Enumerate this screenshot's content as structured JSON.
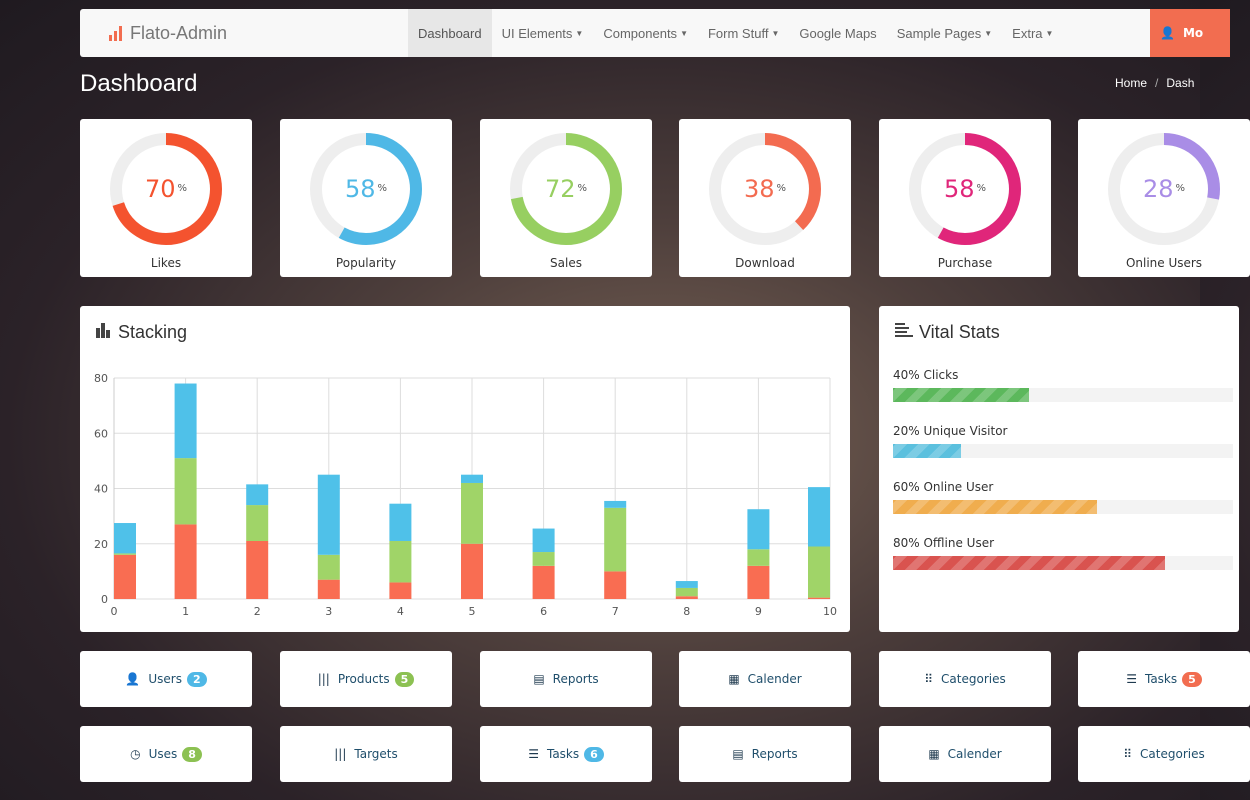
{
  "navbar": {
    "brand": "Flato-Admin",
    "items": [
      {
        "label": "Dashboard",
        "active": true,
        "dropdown": false
      },
      {
        "label": "UI Elements",
        "dropdown": true
      },
      {
        "label": "Components",
        "dropdown": true
      },
      {
        "label": "Form Stuff",
        "dropdown": true
      },
      {
        "label": "Google Maps",
        "dropdown": false
      },
      {
        "label": "Sample Pages",
        "dropdown": true
      },
      {
        "label": "Extra",
        "dropdown": true
      }
    ],
    "user_label": "Mo"
  },
  "page": {
    "title": "Dashboard",
    "breadcrumb": [
      "Home",
      "Dash"
    ]
  },
  "donuts": [
    {
      "value": 70,
      "unit": "%",
      "label": "Likes",
      "color": "#f4532f"
    },
    {
      "value": 58,
      "unit": "%",
      "label": "Popularity",
      "color": "#4fb8e6"
    },
    {
      "value": 72,
      "unit": "%",
      "label": "Sales",
      "color": "#97cf61"
    },
    {
      "value": 38,
      "unit": "%",
      "label": "Download",
      "color": "#f36b50"
    },
    {
      "value": 58,
      "unit": "%",
      "label": "Purchase",
      "color": "#e0267a"
    },
    {
      "value": 28,
      "unit": "%",
      "label": "Online Users",
      "color": "#a98de6"
    }
  ],
  "stacking": {
    "title": "Stacking"
  },
  "chart_data": {
    "type": "bar",
    "stacked": true,
    "x": [
      0,
      1,
      2,
      3,
      4,
      5,
      6,
      7,
      8,
      9,
      10
    ],
    "ylim": [
      0,
      80
    ],
    "yticks": [
      0,
      20,
      40,
      60,
      80
    ],
    "grid": true,
    "series": [
      {
        "color": "#f96d52",
        "values": [
          16,
          27,
          21,
          7,
          6,
          20,
          12,
          10,
          1,
          12,
          0.5
        ]
      },
      {
        "color": "#a0d468",
        "values": [
          0.5,
          24,
          13,
          9,
          15,
          22,
          5,
          23,
          3,
          6,
          18.5
        ]
      },
      {
        "color": "#4fc1e9",
        "values": [
          11,
          27,
          7.5,
          29,
          13.5,
          3,
          8.5,
          2.5,
          2.5,
          14.5,
          21.5
        ]
      }
    ]
  },
  "vital_stats": {
    "title": "Vital Stats",
    "items": [
      {
        "label": "40% Clicks",
        "percent": 40,
        "color": "#5cb85c"
      },
      {
        "label": "20% Unique Visitor",
        "percent": 20,
        "color": "#5bc0de"
      },
      {
        "label": "60% Online User",
        "percent": 60,
        "color": "#f0ad4e"
      },
      {
        "label": "80% Offline User",
        "percent": 80,
        "color": "#d9534f"
      }
    ]
  },
  "buttons": [
    [
      {
        "label": "Users",
        "icon": "user-icon",
        "glyph": "👤",
        "badge": "2",
        "badge_color": "#4fb8e6"
      },
      {
        "label": "Products",
        "icon": "barcode-icon",
        "glyph": "|||",
        "badge": "5",
        "badge_color": "#8cc152"
      },
      {
        "label": "Reports",
        "icon": "document-icon",
        "glyph": "▤"
      },
      {
        "label": "Calender",
        "icon": "calendar-icon",
        "glyph": "▦"
      },
      {
        "label": "Categories",
        "icon": "grid-icon",
        "glyph": "⠿"
      },
      {
        "label": "Tasks",
        "icon": "tasks-icon",
        "glyph": "☰",
        "badge": "5",
        "badge_color": "#f26d50"
      }
    ],
    [
      {
        "label": "Uses",
        "icon": "clock-icon",
        "glyph": "◷",
        "badge": "8",
        "badge_color": "#8cc152"
      },
      {
        "label": "Targets",
        "icon": "barcode-icon",
        "glyph": "|||"
      },
      {
        "label": "Tasks",
        "icon": "tasks-icon",
        "glyph": "☰",
        "badge": "6",
        "badge_color": "#4fb8e6"
      },
      {
        "label": "Reports",
        "icon": "document-icon",
        "glyph": "▤"
      },
      {
        "label": "Calender",
        "icon": "calendar-icon",
        "glyph": "▦"
      },
      {
        "label": "Categories",
        "icon": "grid-icon",
        "glyph": "⠿"
      }
    ]
  ]
}
